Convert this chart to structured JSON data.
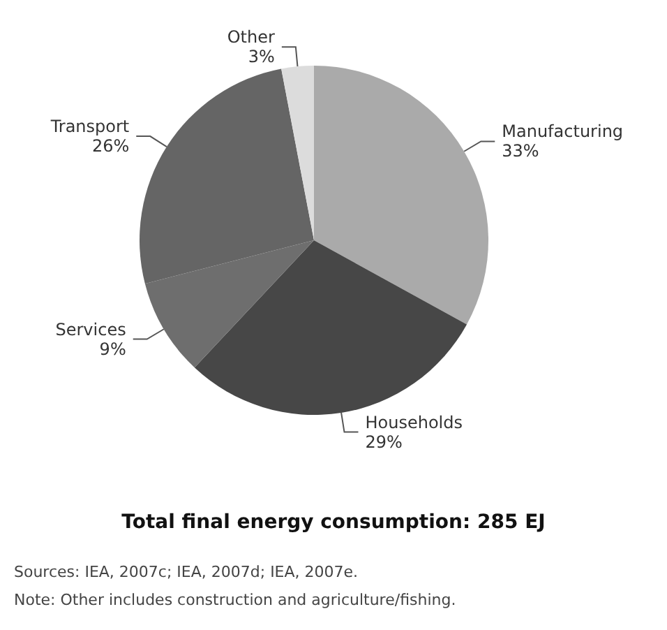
{
  "chart_data": {
    "type": "pie",
    "title": "Total final energy consumption: 285 EJ",
    "categories": [
      "Manufacturing",
      "Households",
      "Services",
      "Transport",
      "Other"
    ],
    "values": [
      33,
      29,
      9,
      26,
      3
    ],
    "colors": [
      "#aaaaaa",
      "#474747",
      "#6e6e6e",
      "#656565",
      "#dcdcdc"
    ],
    "value_labels": [
      "33%",
      "29%",
      "9%",
      "26%",
      "3%"
    ],
    "annotations": [
      "Sources: IEA, 2007c; IEA, 2007d; IEA, 2007e.",
      "Note: Other includes construction and agriculture/fishing."
    ]
  }
}
